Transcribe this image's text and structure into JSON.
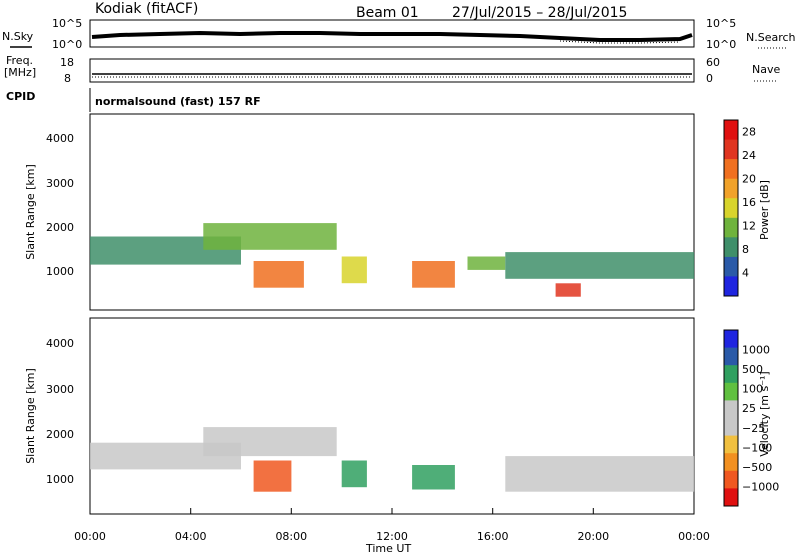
{
  "header": {
    "station": "Kodiak (fitACF)",
    "beam": "Beam 01",
    "date_range": "27/Jul/2015 – 28/Jul/2015"
  },
  "summary_panels": {
    "nsky_label": "N.Sky",
    "nsearch_label": "N.Search",
    "nsky_ticks": [
      "10^5",
      "10^0"
    ],
    "nsearch_ticks": [
      "10^5",
      "10^0"
    ],
    "freq_label_1": "Freq.",
    "freq_label_2": "[MHz]",
    "freq_ticks": [
      "18",
      "8"
    ],
    "nave_label": "Nave",
    "nave_ticks": [
      "60",
      "0"
    ],
    "cpid_label": "CPID",
    "cpid_text": "normalsound (fast) 157 RF"
  },
  "colors": {
    "power_scale": [
      "#1f25e0",
      "#2a5aa8",
      "#3f8f6a",
      "#6fb33d",
      "#d8d42c",
      "#f1a22a",
      "#f07020",
      "#e03520",
      "#e01010"
    ],
    "velocity_scale": [
      "#e01010",
      "#f05820",
      "#f29020",
      "#f1c040",
      "#c8c8c8",
      "#c8c8c8",
      "#60c040",
      "#30a060",
      "#2a5aa8",
      "#1f25e0"
    ]
  },
  "chart_data": [
    {
      "type": "heatmap",
      "name": "power",
      "x_label": "Time UT",
      "y_label": "Slant Range [km]",
      "x_range": [
        0,
        24
      ],
      "y_range": [
        200,
        4600
      ],
      "y_ticks": [
        "1000",
        "2000",
        "3000",
        "4000"
      ],
      "colorbar_label": "Power [dB]",
      "colorbar_ticks": [
        "4",
        "8",
        "12",
        "16",
        "20",
        "24",
        "28"
      ],
      "colorbar_range": [
        0,
        30
      ],
      "bands": [
        {
          "t0": 0.0,
          "t1": 6.0,
          "r0": 1220,
          "r1": 1850,
          "value": 8
        },
        {
          "t0": 4.5,
          "t1": 9.8,
          "r0": 1550,
          "r1": 2150,
          "value": 10
        },
        {
          "t0": 6.5,
          "t1": 8.5,
          "r0": 700,
          "r1": 1300,
          "value": 20
        },
        {
          "t0": 10.0,
          "t1": 11.0,
          "r0": 800,
          "r1": 1400,
          "value": 14
        },
        {
          "t0": 12.8,
          "t1": 14.5,
          "r0": 700,
          "r1": 1300,
          "value": 22
        },
        {
          "t0": 15.0,
          "t1": 16.5,
          "r0": 1100,
          "r1": 1400,
          "value": 12
        },
        {
          "t0": 16.5,
          "t1": 24.0,
          "r0": 900,
          "r1": 1500,
          "value": 9
        },
        {
          "t0": 18.5,
          "t1": 19.5,
          "r0": 500,
          "r1": 800,
          "value": 26
        }
      ]
    },
    {
      "type": "heatmap",
      "name": "velocity",
      "x_label": "Time UT",
      "y_label": "Slant Range [km]",
      "x_range": [
        0,
        24
      ],
      "y_range": [
        200,
        4600
      ],
      "x_ticks": [
        "00:00",
        "04:00",
        "08:00",
        "12:00",
        "16:00",
        "20:00",
        "00:00"
      ],
      "y_ticks": [
        "1000",
        "2000",
        "3000",
        "4000"
      ],
      "colorbar_label": "Velocity [m s⁻¹]",
      "colorbar_ticks": [
        "1000",
        "500",
        "100",
        "25",
        "−25",
        "−100",
        "−500",
        "−1000"
      ],
      "bands": [
        {
          "t0": 0.0,
          "t1": 6.0,
          "r0": 1200,
          "r1": 1800,
          "value": 0
        },
        {
          "t0": 4.5,
          "t1": 9.8,
          "r0": 1500,
          "r1": 2150,
          "value": 0
        },
        {
          "t0": 6.5,
          "t1": 8.0,
          "r0": 700,
          "r1": 1400,
          "value": -200
        },
        {
          "t0": 10.0,
          "t1": 11.0,
          "r0": 800,
          "r1": 1400,
          "value": 300
        },
        {
          "t0": 12.8,
          "t1": 14.5,
          "r0": 750,
          "r1": 1300,
          "value": 200
        },
        {
          "t0": 16.5,
          "t1": 24.0,
          "r0": 700,
          "r1": 1500,
          "value": 0
        }
      ]
    }
  ]
}
